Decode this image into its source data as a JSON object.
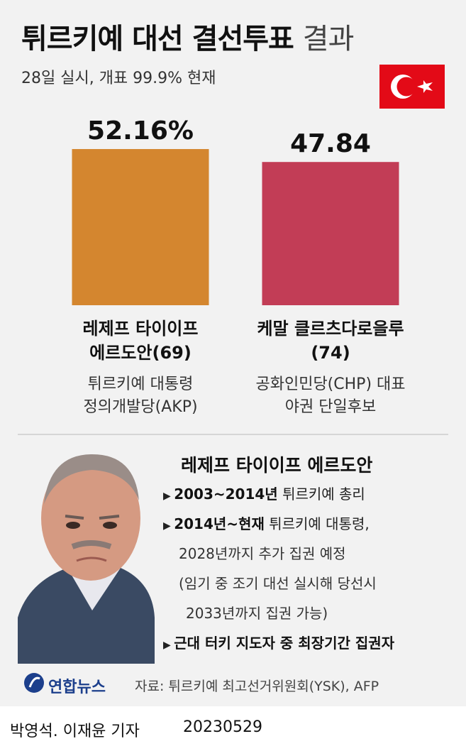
{
  "title": "튀르키예 대선 결선투표",
  "title_suffix": "결과",
  "subtitle": "28일 실시, 개표 99.9% 현재",
  "chart_data": {
    "type": "bar",
    "categories": [
      "레제프 타이이프 에르도안(69)",
      "케말 클르츠다로을루(74)"
    ],
    "values": [
      52.16,
      47.84
    ],
    "value_labels": [
      "52.16%",
      "47.84"
    ],
    "colors": [
      "#d4862f",
      "#c23d56"
    ],
    "ylim": [
      0,
      55
    ]
  },
  "descriptions": [
    [
      "튀르키예 대통령",
      "정의개발당(AKP)"
    ],
    [
      "공화인민당(CHP) 대표",
      "야권 단일후보"
    ]
  ],
  "profile": {
    "name": "레제프 타이이프 에르도안",
    "items": [
      {
        "bold": "2003~2014년",
        "text": "튀르키예 총리",
        "more": []
      },
      {
        "bold": "2014년~현재",
        "text": "튀르키예 대통령,",
        "more": [
          "2028년까지 추가 집권 예정",
          "(임기 중 조기 대선 실시해 당선시",
          "2033년까지 집권 가능)"
        ]
      },
      {
        "bold": "근대 터키 지도자 중 최장기간 집권자",
        "text": "",
        "more": []
      }
    ]
  },
  "logo": "연합뉴스",
  "source": "자료: 튀르키예 최고선거위원회(YSK), AFP",
  "credit": "박영석. 이재윤 기자",
  "date": "20230529"
}
